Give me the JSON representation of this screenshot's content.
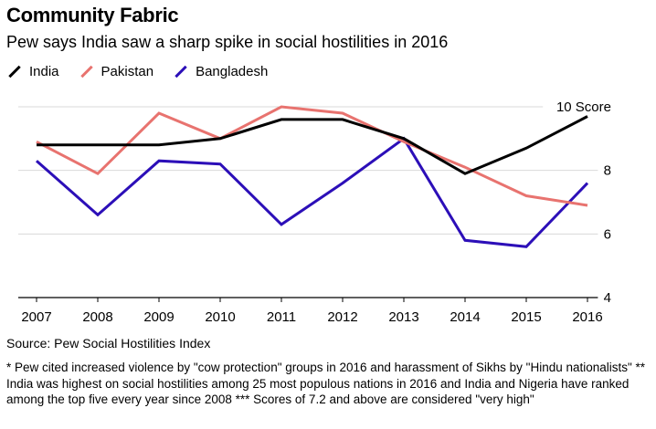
{
  "header": {
    "title": "Community Fabric",
    "subtitle": "Pew says India saw a sharp spike in social hostilities in 2016"
  },
  "legend": [
    {
      "label": "India",
      "color": "#000000"
    },
    {
      "label": "Pakistan",
      "color": "#e8736f"
    },
    {
      "label": "Bangladesh",
      "color": "#2c0fb8"
    }
  ],
  "chart_data": {
    "type": "line",
    "title": "Community Fabric",
    "subtitle": "Pew says India saw a sharp spike in social hostilities in 2016",
    "x": [
      "2007",
      "2008",
      "2009",
      "2010",
      "2011",
      "2012",
      "2013",
      "2014",
      "2015",
      "2016"
    ],
    "series": [
      {
        "name": "India",
        "color": "#000000",
        "values": [
          8.8,
          8.8,
          8.8,
          9.0,
          9.6,
          9.6,
          9.0,
          7.9,
          8.7,
          9.7
        ]
      },
      {
        "name": "Pakistan",
        "color": "#e8736f",
        "values": [
          8.9,
          7.9,
          9.8,
          9.0,
          10.0,
          9.8,
          8.9,
          8.1,
          7.2,
          6.9
        ]
      },
      {
        "name": "Bangladesh",
        "color": "#2c0fb8",
        "values": [
          8.3,
          6.6,
          8.3,
          8.2,
          6.3,
          7.6,
          9.0,
          5.8,
          5.6,
          7.6
        ]
      }
    ],
    "ylim": [
      4,
      10
    ],
    "yticks": [
      {
        "value": 10,
        "label": "10 Score"
      },
      {
        "value": 8,
        "label": "8"
      },
      {
        "value": 6,
        "label": "6"
      },
      {
        "value": 4,
        "label": "4"
      }
    ],
    "xlabel": "",
    "ylabel": "Score",
    "grid": true,
    "legend_position": "top-left"
  },
  "footer": {
    "source": "Source: Pew Social Hostilities Index",
    "note": "* Pew cited increased violence by \"cow protection\" groups in 2016 and harassment of Sikhs by \"Hindu nationalists\" ** India was highest on social hostilities among 25 most populous nations in 2016 and India and Nigeria have ranked among the top five every year since 2008 *** Scores of 7.2 and above are considered \"very high\""
  }
}
